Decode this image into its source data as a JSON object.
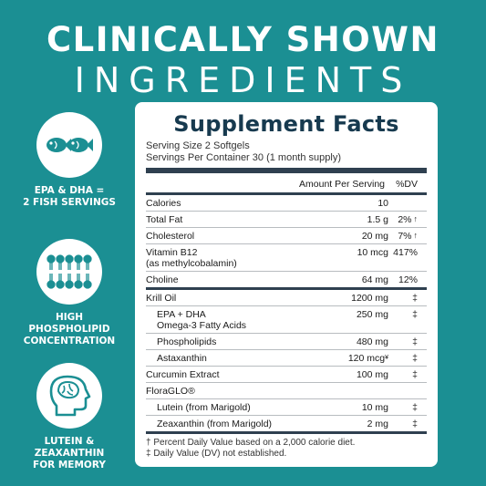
{
  "headline": {
    "line1": "CLINICALLY SHOWN",
    "line2": "INGREDIENTS"
  },
  "features": [
    {
      "icon": "fish-icon",
      "caption_l1": "EPA & DHA =",
      "caption_l2": "2 FISH SERVINGS"
    },
    {
      "icon": "phospholipid-icon",
      "caption_l1": "HIGH PHOSPHOLIPID",
      "caption_l2": "CONCENTRATION"
    },
    {
      "icon": "brain-head-icon",
      "caption_l1": "LUTEIN & ZEAXANTHIN",
      "caption_l2": "FOR MEMORY"
    }
  ],
  "colors": {
    "background": "#1b8f93",
    "panel_text": "#173a4f",
    "icon": "#1b8f93"
  },
  "facts": {
    "title": "Supplement Facts",
    "serving_size": "Serving Size 2 Softgels",
    "servings_per_container": "Servings Per Container 30 (1 month supply)",
    "header_amount": "Amount Per Serving",
    "header_dv": "%DV",
    "rows": [
      {
        "name": "Calories",
        "amount": "10",
        "dv": ""
      },
      {
        "name": "Total Fat",
        "amount": "1.5 g",
        "dv": "2%"
      },
      {
        "name": "Cholesterol",
        "amount": "20 mg",
        "dv": "7%"
      },
      {
        "name": "Vitamin B12",
        "name2": "(as methylcobalamin)",
        "amount": "10 mcg",
        "dv": "417%"
      },
      {
        "name": "Choline",
        "amount": "64 mg",
        "dv": "12%"
      },
      {
        "name": "Krill Oil",
        "amount": "1200 mg",
        "dv": "‡"
      },
      {
        "name": "EPA + DHA",
        "name2": "Omega-3 Fatty Acids",
        "amount": "250 mg",
        "dv": "‡"
      },
      {
        "name": "Phospholipids",
        "amount": "480 mg",
        "dv": "‡"
      },
      {
        "name": "Astaxanthin",
        "amount": "120 mcg",
        "dv": "‡"
      },
      {
        "name": "Curcumin Extract",
        "amount": "100 mg",
        "dv": "‡"
      },
      {
        "name": "FloraGLO®",
        "amount": "",
        "dv": ""
      },
      {
        "name": "Lutein (from Marigold)",
        "amount": "10 mg",
        "dv": "‡"
      },
      {
        "name": "Zeaxanthin (from Marigold)",
        "amount": "2 mg",
        "dv": "‡"
      }
    ],
    "arrow": "↑",
    "astaxanthin_mark": "¥",
    "footnote1": "† Percent Daily Value based on a 2,000 calorie diet.",
    "footnote2": "‡ Daily Value (DV) not established."
  }
}
